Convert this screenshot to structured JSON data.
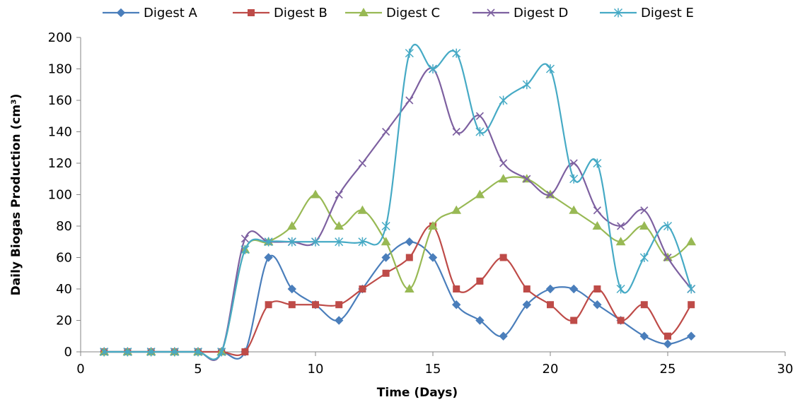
{
  "chart_data": {
    "type": "scatter",
    "xlabel": "Time (Days)",
    "ylabel": "Daily Biogas Production (cm³)",
    "xlim": [
      0,
      30
    ],
    "ylim": [
      0,
      200
    ],
    "xticks": [
      0,
      5,
      10,
      15,
      20,
      25,
      30
    ],
    "yticks": [
      0,
      20,
      40,
      60,
      80,
      100,
      120,
      140,
      160,
      180,
      200
    ],
    "grid": false,
    "legend": "top",
    "smooth": true,
    "x": [
      1,
      2,
      3,
      4,
      5,
      6,
      7,
      8,
      9,
      10,
      11,
      12,
      13,
      14,
      15,
      16,
      17,
      18,
      19,
      20,
      21,
      22,
      23,
      24,
      25,
      26
    ],
    "series": [
      {
        "name": "Digest A",
        "color": "#4a7ebb",
        "marker": "diamond",
        "values": [
          0,
          0,
          0,
          0,
          0,
          0,
          0,
          60,
          40,
          30,
          20,
          40,
          60,
          70,
          60,
          30,
          20,
          10,
          30,
          40,
          40,
          30,
          20,
          10,
          5,
          10
        ]
      },
      {
        "name": "Digest B",
        "color": "#be4b48",
        "marker": "square",
        "values": [
          0,
          0,
          0,
          0,
          0,
          0,
          0,
          30,
          30,
          30,
          30,
          40,
          50,
          60,
          80,
          40,
          45,
          60,
          40,
          30,
          20,
          40,
          20,
          30,
          10,
          30
        ]
      },
      {
        "name": "Digest C",
        "color": "#98b954",
        "marker": "triangle",
        "values": [
          0,
          0,
          0,
          0,
          0,
          0,
          65,
          70,
          80,
          100,
          80,
          90,
          70,
          40,
          80,
          90,
          100,
          110,
          110,
          100,
          90,
          80,
          70,
          80,
          60,
          70
        ]
      },
      {
        "name": "Digest D",
        "color": "#7d60a0",
        "marker": "x",
        "values": [
          0,
          0,
          0,
          0,
          0,
          0,
          72,
          70,
          70,
          70,
          100,
          120,
          140,
          160,
          180,
          140,
          150,
          120,
          110,
          100,
          120,
          90,
          80,
          90,
          60,
          40
        ]
      },
      {
        "name": "Digest E",
        "color": "#46aac5",
        "marker": "star",
        "values": [
          0,
          0,
          0,
          0,
          0,
          0,
          65,
          70,
          70,
          70,
          70,
          70,
          80,
          190,
          180,
          190,
          140,
          160,
          170,
          180,
          110,
          120,
          40,
          60,
          80,
          40
        ]
      }
    ]
  }
}
